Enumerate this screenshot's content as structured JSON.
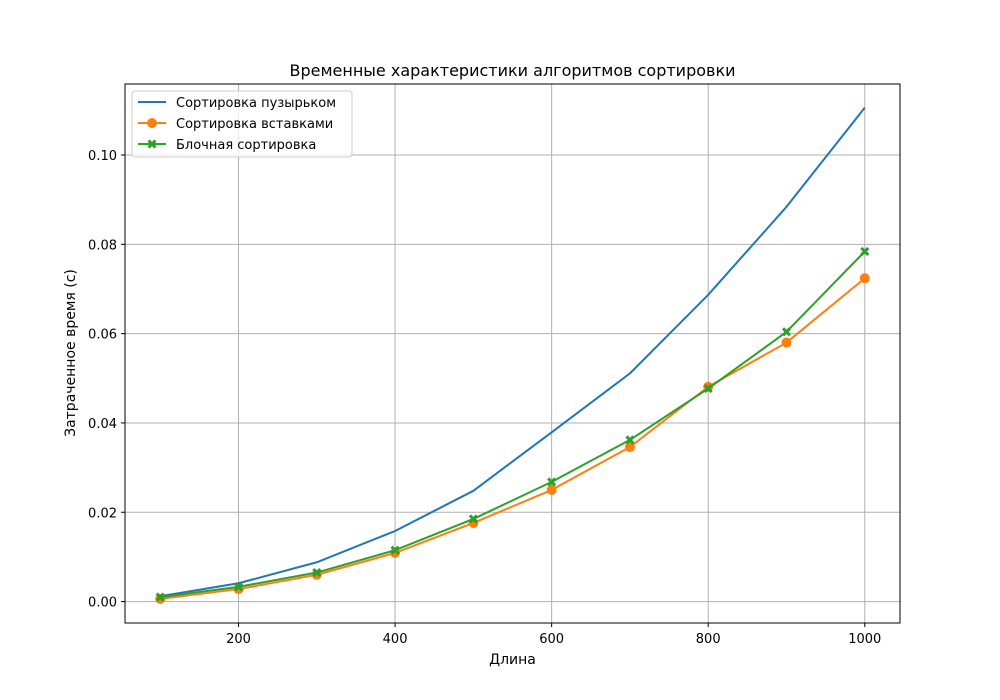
{
  "chart_data": {
    "type": "line",
    "title": "Временные характеристики алгоритмов сортировки",
    "xlabel": "Длина",
    "ylabel": "Затраченное время (с)",
    "xlim": [
      55,
      1045
    ],
    "ylim": [
      -0.0048,
      0.1159
    ],
    "x_ticks": [
      200,
      400,
      600,
      800,
      1000
    ],
    "x_tick_labels": [
      "200",
      "400",
      "600",
      "800",
      "1000"
    ],
    "y_ticks": [
      0.0,
      0.02,
      0.04,
      0.06,
      0.08,
      0.1
    ],
    "y_tick_labels": [
      "0.00",
      "0.02",
      "0.04",
      "0.06",
      "0.08",
      "0.10"
    ],
    "grid": true,
    "legend_position": "upper-left",
    "x": [
      100,
      200,
      300,
      400,
      500,
      600,
      700,
      800,
      900,
      1000
    ],
    "series": [
      {
        "name": "Сортировка пузырьком",
        "color": "#1f77b4",
        "marker": "none",
        "values": [
          0.0012,
          0.0041,
          0.0088,
          0.0158,
          0.0248,
          0.0379,
          0.0511,
          0.0687,
          0.0884,
          0.1106
        ]
      },
      {
        "name": "Сортировка вставками",
        "color": "#ff7f0e",
        "marker": "circle",
        "values": [
          0.0006,
          0.0028,
          0.006,
          0.0109,
          0.0176,
          0.025,
          0.0346,
          0.0481,
          0.058,
          0.0724
        ]
      },
      {
        "name": "Блочная сортировка",
        "color": "#2ca02c",
        "marker": "x",
        "values": [
          0.001,
          0.0033,
          0.0065,
          0.0115,
          0.0185,
          0.0268,
          0.0362,
          0.0477,
          0.0604,
          0.0784
        ]
      }
    ]
  }
}
